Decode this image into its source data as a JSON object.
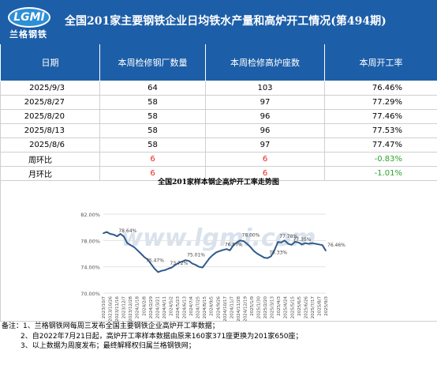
{
  "header": {
    "logo_text": "LGMI",
    "logo_cn": "兰格钢铁",
    "title": "全国201家主要钢铁企业日均铁水产量和高炉开工情况(第494期)"
  },
  "table": {
    "columns": [
      "日期",
      "本周检修钢厂数量",
      "本周检修高炉座数",
      "本周开工率"
    ],
    "rows": [
      [
        "2025/9/3",
        "64",
        "103",
        "76.46%"
      ],
      [
        "2025/8/27",
        "58",
        "97",
        "77.29%"
      ],
      [
        "2025/8/20",
        "58",
        "96",
        "77.46%"
      ],
      [
        "2025/8/13",
        "58",
        "96",
        "77.53%"
      ],
      [
        "2025/8/6",
        "58",
        "97",
        "77.47%"
      ],
      [
        "周环比",
        "6",
        "6",
        "-0.83%"
      ],
      [
        "月环比",
        "6",
        "6",
        "-1.01%"
      ]
    ]
  },
  "colors": {
    "header_bg": "#1d5ea8",
    "series_line": "#2f5a8a",
    "increase": "#e8251c",
    "decrease": "#2ca52c"
  },
  "chart_data": {
    "type": "line",
    "title": "全国201家样本钢企高炉开工率走势图",
    "watermark": "www.lgmi.com",
    "ylim": [
      70,
      82
    ],
    "yticks": [
      "82.00%",
      "78.00%",
      "74.00%",
      "70.00%"
    ],
    "xtick_labels": [
      "2023/10/7",
      "2023/10/26",
      "2023/11/16",
      "2023/12/7",
      "2023/12/28",
      "2024/1/18",
      "2024/2/8",
      "2024/2/29",
      "2024/3/21",
      "2024/4/11",
      "2024/5/2",
      "2024/5/23",
      "2024/6/13",
      "2024/7/4",
      "2024/7/25",
      "2024/8/15",
      "2024/9/5",
      "2024/9/26",
      "2024/10/17",
      "2024/11/7",
      "2024/11/28",
      "2024/12/19",
      "2025/1/9",
      "2025/1/30",
      "2025/2/20",
      "2025/3/13",
      "2025/4/3",
      "2025/4/24",
      "2025/5/15",
      "2025/6/5",
      "2025/6/26",
      "2025/7/17",
      "2025/8/7",
      "2025/9/3"
    ],
    "annotations": [
      "78.64%",
      "75.47%",
      "73.72%",
      "75.01%",
      "76.57%",
      "78.00%",
      "75.33%",
      "77.78%",
      "77.35%",
      "76.46%"
    ],
    "values": [
      79.1,
      79.3,
      79.0,
      78.9,
      78.64,
      79.0,
      78.6,
      77.6,
      77.3,
      77.0,
      76.5,
      76.0,
      75.47,
      75.1,
      74.4,
      73.7,
      73.2,
      73.4,
      73.5,
      73.72,
      73.9,
      74.3,
      74.6,
      74.8,
      75.01,
      74.9,
      74.5,
      74.3,
      74.0,
      73.9,
      74.6,
      75.3,
      75.8,
      76.2,
      76.4,
      76.57,
      76.7,
      76.5,
      77.3,
      77.7,
      78.0,
      77.9,
      77.5,
      77.0,
      76.4,
      76.0,
      75.7,
      75.4,
      75.33,
      75.6,
      76.5,
      77.78,
      77.7,
      78.0,
      77.5,
      77.35,
      77.8,
      77.7,
      77.4,
      77.6,
      77.5,
      77.6,
      77.5,
      77.4,
      77.3,
      76.46
    ]
  },
  "notes": [
    "备注：1、兰格钢铁网每周三发布全国主要钢铁企业高炉开工率数据；",
    "2、自2022年7月21日起，高炉开工率样本数据由原来160家371座更换为201家650座；",
    "3、以上数据为周度发布；最终解释权归属兰格钢铁网；"
  ]
}
